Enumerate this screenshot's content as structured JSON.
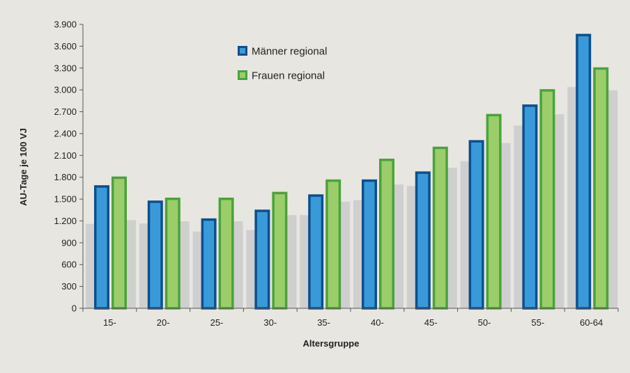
{
  "chart_data": {
    "type": "bar",
    "title": "",
    "xlabel": "Altersgruppe",
    "ylabel": "AU-Tage je 100 VJ",
    "ylim": [
      0,
      3900
    ],
    "yticks": [
      0,
      300,
      600,
      900,
      1200,
      1500,
      1800,
      2100,
      2400,
      2700,
      3000,
      3300,
      3600,
      3900
    ],
    "ytick_labels": [
      "0",
      "300",
      "600",
      "900",
      "1.200",
      "1.500",
      "1.800",
      "2.100",
      "2.400",
      "2.700",
      "3.000",
      "3.300",
      "3.600",
      "3.900"
    ],
    "categories": [
      "15-",
      "20-",
      "25-",
      "30-",
      "35-",
      "40-",
      "45-",
      "50-",
      "55-",
      "60-64"
    ],
    "series": [
      {
        "name": "Männer regional",
        "color": "#3a9ad9",
        "border": "#0d4f8c",
        "values": [
          1690,
          1480,
          1235,
          1355,
          1565,
          1770,
          1880,
          2310,
          2800,
          3770
        ]
      },
      {
        "name": "Frauen regional",
        "color": "#9ccd6b",
        "border": "#4aa33a",
        "values": [
          1810,
          1520,
          1520,
          1600,
          1770,
          2055,
          2220,
          2670,
          3010,
          3310
        ]
      }
    ],
    "background_bars": {
      "color": "#cfcfcf",
      "before": [
        1160,
        1165,
        1055,
        1075,
        1280,
        1485,
        1680,
        2020,
        2510,
        3040
      ],
      "after": [
        1210,
        1195,
        1195,
        1280,
        1465,
        1700,
        1930,
        2270,
        2665,
        2995
      ]
    },
    "legend": {
      "placement": "top-left-inside"
    },
    "grid": false
  }
}
